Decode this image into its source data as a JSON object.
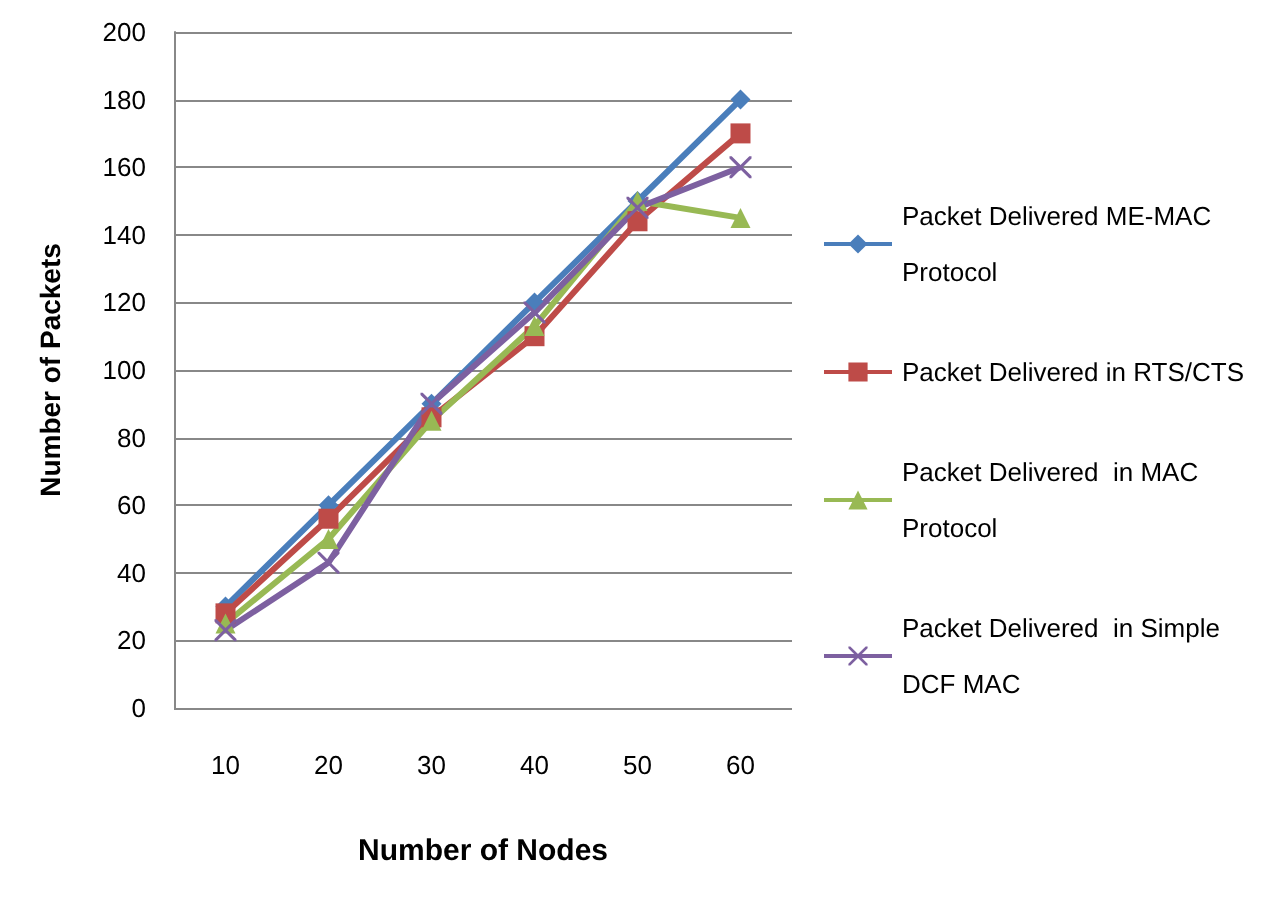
{
  "chart_data": {
    "type": "line",
    "xlabel": "Number of Nodes",
    "ylabel": "Number of Packets",
    "categories": [
      "10",
      "20",
      "30",
      "40",
      "50",
      "60"
    ],
    "ylim": [
      0,
      200
    ],
    "yticks": [
      0,
      20,
      40,
      60,
      80,
      100,
      120,
      140,
      160,
      180,
      200
    ],
    "grid": "y",
    "legend": "right",
    "series": [
      {
        "name": "Packet Delivered ME-MAC Protocol",
        "color": "#4a7ebb",
        "marker": "diamond",
        "values": [
          30,
          60,
          90,
          120,
          150,
          180
        ]
      },
      {
        "name": "Packet Delivered in RTS/CTS",
        "color": "#be4b48",
        "marker": "square",
        "values": [
          28,
          56,
          86,
          110,
          144,
          170
        ]
      },
      {
        "name": "Packet Delivered  in MAC Protocol",
        "color": "#98b954",
        "marker": "triangle",
        "values": [
          25,
          50,
          85,
          113,
          150,
          145
        ]
      },
      {
        "name": "Packet Delivered  in Simple DCF MAC",
        "color": "#7d60a0",
        "marker": "cross",
        "values": [
          23,
          43,
          90,
          117,
          148,
          160
        ]
      }
    ]
  }
}
